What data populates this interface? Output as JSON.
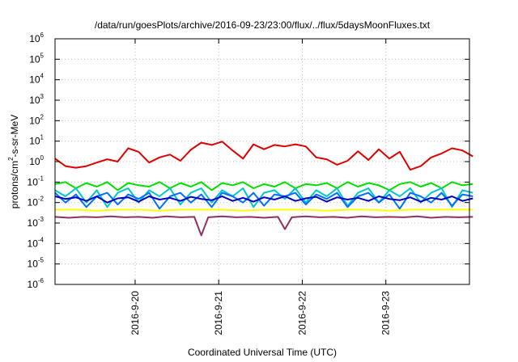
{
  "chart_data": {
    "type": "line",
    "title": "/data/run/goesPlots/archive/2016-09-23/23:00/flux/../flux/5daysMoonFluxes.txt",
    "xlabel": "Coordinated Universal Time (UTC)",
    "ylabel": "protons/cm2-s-sr-MeV",
    "ylabel_parts": [
      "protons/cm",
      "2",
      "-s-sr-MeV"
    ],
    "yscale": "log",
    "ylim": [
      1e-06,
      1000000.0
    ],
    "y_ticks": [
      {
        "base": "10",
        "exp": "-6"
      },
      {
        "base": "10",
        "exp": "-5"
      },
      {
        "base": "10",
        "exp": "-4"
      },
      {
        "base": "10",
        "exp": "-3"
      },
      {
        "base": "10",
        "exp": "-2"
      },
      {
        "base": "10",
        "exp": "-1"
      },
      {
        "base": "10",
        "exp": "0"
      },
      {
        "base": "10",
        "exp": "1"
      },
      {
        "base": "10",
        "exp": "2"
      },
      {
        "base": "10",
        "exp": "3"
      },
      {
        "base": "10",
        "exp": "4"
      },
      {
        "base": "10",
        "exp": "5"
      },
      {
        "base": "10",
        "exp": "6"
      }
    ],
    "xlim": [
      "2016-09-19 01:00",
      "2016-09-24 00:00"
    ],
    "x_ticks": [
      "2016-9-20",
      "2016-9-21",
      "2016-9-22",
      "2016-9-23"
    ],
    "grid": true,
    "series": [
      {
        "color": "#e00000",
        "x_hours": [
          0,
          3,
          6,
          9,
          12,
          15,
          18,
          21,
          24,
          27,
          30,
          33,
          36,
          39,
          42,
          45,
          48,
          51,
          54,
          57,
          60,
          63,
          66,
          69,
          72,
          75,
          78,
          81,
          84,
          87,
          90,
          93,
          96,
          99,
          102,
          105,
          108,
          111,
          114,
          117,
          120
        ],
        "y": [
          1.4,
          0.6,
          0.5,
          0.6,
          0.9,
          1.3,
          1.0,
          4.5,
          3.0,
          0.9,
          1.6,
          2.2,
          1.1,
          3.8,
          8.5,
          6.5,
          9.5,
          3.5,
          1.4,
          7.0,
          4.0,
          6.5,
          5.5,
          7.0,
          5.5,
          1.6,
          1.3,
          0.7,
          1.1,
          3.2,
          1.2,
          4.0,
          1.4,
          3.0,
          0.4,
          0.6,
          1.6,
          2.5,
          4.5,
          3.5,
          1.8
        ]
      },
      {
        "color": "#00e000",
        "x_hours": [
          0,
          3,
          6,
          9,
          12,
          15,
          18,
          21,
          24,
          27,
          30,
          33,
          36,
          39,
          42,
          45,
          48,
          51,
          54,
          57,
          60,
          63,
          66,
          69,
          72,
          75,
          78,
          81,
          84,
          87,
          90,
          93,
          96,
          99,
          102,
          105,
          108,
          111,
          114,
          117,
          120
        ],
        "y": [
          0.08,
          0.1,
          0.05,
          0.09,
          0.06,
          0.1,
          0.04,
          0.09,
          0.07,
          0.06,
          0.1,
          0.05,
          0.09,
          0.06,
          0.1,
          0.04,
          0.09,
          0.07,
          0.1,
          0.05,
          0.08,
          0.06,
          0.1,
          0.05,
          0.08,
          0.07,
          0.09,
          0.05,
          0.1,
          0.06,
          0.09,
          0.07,
          0.04,
          0.08,
          0.1,
          0.06,
          0.09,
          0.05,
          0.1,
          0.07,
          0.08
        ]
      },
      {
        "color": "#00c8c8",
        "x_hours": [
          0,
          3,
          6,
          9,
          12,
          15,
          18,
          21,
          24,
          27,
          30,
          33,
          36,
          39,
          42,
          45,
          48,
          51,
          54,
          57,
          60,
          63,
          66,
          69,
          72,
          75,
          78,
          81,
          84,
          87,
          90,
          93,
          96,
          99,
          102,
          105,
          108,
          111,
          114,
          117,
          120
        ],
        "y": [
          0.04,
          0.02,
          0.05,
          0.01,
          0.04,
          0.006,
          0.03,
          0.05,
          0.01,
          0.04,
          0.02,
          0.05,
          0.008,
          0.03,
          0.05,
          0.01,
          0.04,
          0.02,
          0.05,
          0.006,
          0.03,
          0.04,
          0.015,
          0.05,
          0.01,
          0.04,
          0.02,
          0.05,
          0.007,
          0.03,
          0.05,
          0.01,
          0.04,
          0.02,
          0.05,
          0.01,
          0.03,
          0.05,
          0.006,
          0.04,
          0.03
        ]
      },
      {
        "color": "#0070ff",
        "x_hours": [
          0,
          3,
          6,
          9,
          12,
          15,
          18,
          21,
          24,
          27,
          30,
          33,
          36,
          39,
          42,
          45,
          48,
          51,
          54,
          57,
          60,
          63,
          66,
          69,
          72,
          75,
          78,
          81,
          84,
          87,
          90,
          93,
          96,
          99,
          102,
          105,
          108,
          111,
          114,
          117,
          120
        ],
        "y": [
          0.03,
          0.01,
          0.025,
          0.006,
          0.02,
          0.03,
          0.008,
          0.025,
          0.015,
          0.03,
          0.005,
          0.02,
          0.03,
          0.01,
          0.025,
          0.006,
          0.03,
          0.02,
          0.01,
          0.03,
          0.007,
          0.025,
          0.02,
          0.03,
          0.008,
          0.025,
          0.015,
          0.03,
          0.006,
          0.02,
          0.03,
          0.01,
          0.025,
          0.005,
          0.03,
          0.02,
          0.01,
          0.03,
          0.007,
          0.025,
          0.02
        ]
      },
      {
        "color": "#0000c0",
        "x_hours": [
          0,
          3,
          6,
          9,
          12,
          15,
          18,
          21,
          24,
          27,
          30,
          33,
          36,
          39,
          42,
          45,
          48,
          51,
          54,
          57,
          60,
          63,
          66,
          69,
          72,
          75,
          78,
          81,
          84,
          87,
          90,
          93,
          96,
          99,
          102,
          105,
          108,
          111,
          114,
          117,
          120
        ],
        "y": [
          0.02,
          0.015,
          0.018,
          0.012,
          0.02,
          0.01,
          0.016,
          0.018,
          0.011,
          0.02,
          0.014,
          0.017,
          0.012,
          0.019,
          0.015,
          0.013,
          0.02,
          0.012,
          0.017,
          0.011,
          0.018,
          0.014,
          0.02,
          0.012,
          0.016,
          0.019,
          0.011,
          0.018,
          0.014,
          0.017,
          0.012,
          0.02,
          0.015,
          0.013,
          0.018,
          0.011,
          0.017,
          0.014,
          0.02,
          0.012,
          0.016
        ]
      },
      {
        "color": "#ffff00",
        "x_hours": [
          0,
          6,
          12,
          18,
          24,
          30,
          36,
          42,
          48,
          54,
          60,
          66,
          72,
          78,
          84,
          90,
          96,
          102,
          108,
          114,
          120
        ],
        "y": [
          0.0045,
          0.0045,
          0.004,
          0.0045,
          0.0045,
          0.004,
          0.0045,
          0.0045,
          0.0045,
          0.004,
          0.0045,
          0.0045,
          0.0045,
          0.004,
          0.0045,
          0.0045,
          0.004,
          0.0045,
          0.0045,
          0.0045,
          0.0045
        ]
      },
      {
        "color": "#903060",
        "x_hours": [
          0,
          4,
          8,
          12,
          16,
          20,
          24,
          28,
          32,
          36,
          40,
          42,
          44,
          48,
          52,
          56,
          60,
          64,
          66,
          68,
          72,
          76,
          80,
          84,
          88,
          92,
          96,
          100,
          104,
          108,
          112,
          116,
          120
        ],
        "y": [
          0.002,
          0.0018,
          0.002,
          0.0019,
          0.0021,
          0.0019,
          0.002,
          0.0018,
          0.0021,
          0.0019,
          0.002,
          0.00025,
          0.0019,
          0.0021,
          0.0019,
          0.002,
          0.0018,
          0.002,
          0.0005,
          0.0019,
          0.0021,
          0.0019,
          0.002,
          0.0018,
          0.0021,
          0.0019,
          0.002,
          0.0019,
          0.0021,
          0.0018,
          0.002,
          0.0019,
          0.002
        ]
      }
    ]
  }
}
